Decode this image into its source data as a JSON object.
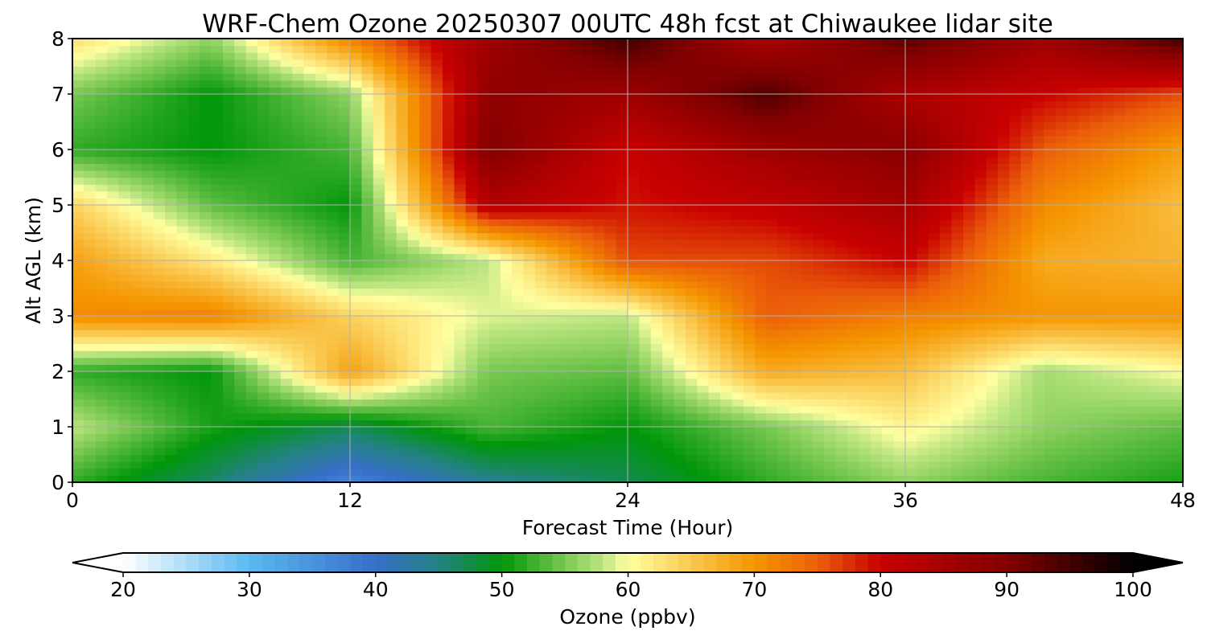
{
  "chart_data": {
    "type": "heatmap",
    "title": "WRF-Chem Ozone  20250307 00UTC 48h fcst at Chiwaukee lidar site",
    "xlabel": "Forecast Time (Hour)",
    "ylabel": "Alt AGL (km)",
    "xlim": [
      0,
      48
    ],
    "ylim": [
      0,
      8
    ],
    "x_ticks": [
      "0",
      "12",
      "24",
      "36",
      "48"
    ],
    "y_ticks": [
      "0",
      "1",
      "2",
      "3",
      "4",
      "5",
      "6",
      "7",
      "8"
    ],
    "grid": true,
    "x": [
      0,
      6,
      12,
      18,
      24,
      30,
      36,
      42,
      48
    ],
    "y": [
      0,
      1,
      2,
      3,
      4,
      5,
      6,
      7,
      8
    ],
    "z": [
      [
        52,
        46,
        37,
        44,
        47,
        52,
        56,
        53,
        51
      ],
      [
        58,
        51,
        47,
        53,
        50,
        55,
        61,
        56,
        54
      ],
      [
        52,
        50,
        69,
        55,
        54,
        68,
        66,
        57,
        60
      ],
      [
        71,
        72,
        64,
        59,
        58,
        75,
        72,
        70,
        70
      ],
      [
        69,
        62,
        53,
        58,
        76,
        76,
        80,
        68,
        67
      ],
      [
        64,
        54,
        50,
        83,
        79,
        81,
        85,
        71,
        66
      ],
      [
        52,
        50,
        53,
        90,
        80,
        86,
        89,
        75,
        69
      ],
      [
        55,
        50,
        56,
        88,
        86,
        94,
        84,
        80,
        76
      ],
      [
        63,
        56,
        72,
        86,
        95,
        84,
        93,
        86,
        95
      ]
    ],
    "colorbar": {
      "label": "Ozone  (ppbv)",
      "min": 20,
      "max": 100,
      "ticks": [
        "20",
        "30",
        "40",
        "50",
        "60",
        "70",
        "80",
        "90",
        "100"
      ],
      "extend": "both"
    }
  }
}
